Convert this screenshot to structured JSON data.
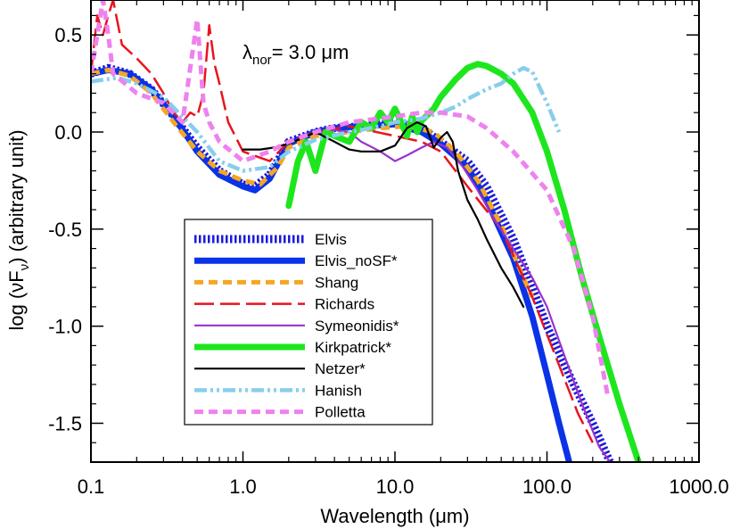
{
  "chart_data": {
    "type": "line",
    "title": "",
    "annotation": {
      "lambda_symbol": "λ",
      "lambda_sub": "nor",
      "text": "=  3.0 μm"
    },
    "xlabel": "Wavelength (μm)",
    "ylabel": "log (νF",
    "ylabel_sub": "ν",
    "ylabel_tail": ") (arbitrary unit)",
    "xscale": "log",
    "xlim": [
      0.1,
      1000
    ],
    "ylim": [
      -1.7,
      0.68
    ],
    "xticks": [
      {
        "value": 0.1,
        "label": "0.1"
      },
      {
        "value": 1,
        "label": "1.0"
      },
      {
        "value": 10,
        "label": "10.0"
      },
      {
        "value": 100,
        "label": "100.0"
      },
      {
        "value": 1000,
        "label": "1000.0"
      }
    ],
    "yticks": [
      {
        "value": 0.5,
        "label": "0.5"
      },
      {
        "value": 0.0,
        "label": "0.0"
      },
      {
        "value": -0.5,
        "label": "-0.5"
      },
      {
        "value": -1.0,
        "label": "-1.0"
      },
      {
        "value": -1.5,
        "label": "-1.5"
      }
    ],
    "legend_position": "center-left",
    "series": [
      {
        "name": "Elvis",
        "color": "#1a1adc",
        "style": "dotted-thick",
        "x": [
          0.1,
          0.13,
          0.18,
          0.25,
          0.35,
          0.5,
          0.7,
          1.0,
          1.2,
          1.5,
          2.0,
          3.0,
          4.0,
          6.0,
          10,
          15,
          20,
          30,
          40,
          60,
          80,
          100,
          150,
          200,
          260
        ],
        "y": [
          0.3,
          0.33,
          0.3,
          0.22,
          0.08,
          -0.08,
          -0.2,
          -0.27,
          -0.28,
          -0.22,
          -0.05,
          0.0,
          0.02,
          0.03,
          0.05,
          0.02,
          -0.05,
          -0.15,
          -0.28,
          -0.55,
          -0.8,
          -1.0,
          -1.3,
          -1.5,
          -1.7
        ]
      },
      {
        "name": "Elvis_noSF*",
        "color": "#0a32e6",
        "style": "solid-thick",
        "x": [
          0.1,
          0.13,
          0.18,
          0.25,
          0.35,
          0.5,
          0.7,
          1.0,
          1.2,
          1.5,
          2.0,
          3.0,
          4.0,
          6.0,
          10,
          15,
          20,
          30,
          40,
          60,
          80,
          100,
          120,
          140
        ],
        "y": [
          0.3,
          0.32,
          0.3,
          0.22,
          0.08,
          -0.1,
          -0.22,
          -0.28,
          -0.3,
          -0.24,
          -0.06,
          0.0,
          0.02,
          0.03,
          0.04,
          0.0,
          -0.06,
          -0.18,
          -0.35,
          -0.65,
          -0.95,
          -1.25,
          -1.5,
          -1.7
        ]
      },
      {
        "name": "Shang",
        "color": "#f5a623",
        "style": "dashed-thick",
        "x": [
          0.1,
          0.13,
          0.18,
          0.25,
          0.35,
          0.5,
          0.7,
          1.0,
          1.3,
          1.7,
          2.0,
          3.0,
          5.0,
          8.0,
          12,
          18,
          25,
          35,
          50,
          70,
          80
        ],
        "y": [
          0.3,
          0.32,
          0.29,
          0.2,
          0.05,
          -0.1,
          -0.2,
          -0.25,
          -0.27,
          -0.18,
          -0.08,
          -0.02,
          0.0,
          0.02,
          0.03,
          0.0,
          -0.1,
          -0.25,
          -0.48,
          -0.75,
          -0.85
        ]
      },
      {
        "name": "Richards",
        "color": "#e8141e",
        "style": "long-dash",
        "x": [
          0.1,
          0.11,
          0.12,
          0.13,
          0.14,
          0.16,
          0.2,
          0.25,
          0.3,
          0.35,
          0.4,
          0.45,
          0.5,
          0.55,
          0.6,
          0.65,
          0.7,
          0.8,
          1.0,
          1.5,
          2.0,
          3.0,
          5.0,
          10,
          15,
          20,
          30,
          50,
          80,
          120,
          160,
          200
        ],
        "y": [
          0.3,
          0.6,
          0.5,
          0.6,
          0.68,
          0.45,
          0.38,
          0.3,
          0.2,
          0.1,
          0.05,
          0.1,
          0.08,
          0.2,
          0.55,
          0.35,
          0.25,
          0.05,
          -0.1,
          -0.15,
          -0.05,
          0.0,
          0.03,
          -0.02,
          -0.05,
          -0.1,
          -0.28,
          -0.5,
          -0.85,
          -1.2,
          -1.45,
          -1.6
        ]
      },
      {
        "name": "Symeonidis*",
        "color": "#9a32cd",
        "style": "solid",
        "x": [
          3.0,
          4.0,
          5.0,
          6.0,
          8.0,
          10,
          12,
          15,
          18,
          22,
          28,
          35,
          45,
          60,
          80,
          100,
          130,
          170,
          220,
          260
        ],
        "y": [
          -0.01,
          0.01,
          0.0,
          -0.05,
          -0.1,
          -0.15,
          -0.12,
          -0.08,
          -0.05,
          -0.08,
          -0.18,
          -0.3,
          -0.45,
          -0.6,
          -0.75,
          -0.9,
          -1.15,
          -1.4,
          -1.62,
          -1.7
        ]
      },
      {
        "name": "Kirkpatrick*",
        "color": "#1ee61e",
        "style": "solid-thick",
        "x": [
          2.0,
          2.3,
          2.6,
          3.0,
          3.5,
          4.0,
          5.0,
          6.0,
          7.0,
          8.0,
          9.0,
          10,
          11,
          12,
          13,
          14,
          15,
          16,
          18,
          20,
          25,
          30,
          35,
          40,
          50,
          60,
          80,
          100,
          130,
          170,
          220,
          300,
          400
        ],
        "y": [
          -0.38,
          -0.15,
          -0.05,
          -0.2,
          0.0,
          -0.02,
          -0.05,
          0.05,
          0.02,
          0.1,
          0.05,
          0.12,
          0.05,
          -0.02,
          0.08,
          0.0,
          0.06,
          0.08,
          0.12,
          0.18,
          0.27,
          0.33,
          0.35,
          0.34,
          0.3,
          0.25,
          0.1,
          -0.1,
          -0.4,
          -0.75,
          -1.05,
          -1.4,
          -1.7
        ]
      },
      {
        "name": "Netzer*",
        "color": "#000000",
        "style": "solid",
        "x": [
          1.0,
          1.3,
          1.6,
          2.0,
          2.5,
          3.0,
          4.0,
          5.0,
          6.0,
          8.0,
          10,
          12,
          14,
          16,
          18,
          20,
          22,
          24,
          26,
          30,
          35,
          40,
          50,
          60,
          70
        ],
        "y": [
          -0.09,
          -0.09,
          -0.08,
          -0.06,
          -0.03,
          0.0,
          -0.05,
          -0.09,
          -0.1,
          -0.1,
          -0.07,
          0.02,
          0.05,
          0.03,
          -0.08,
          -0.03,
          0.0,
          -0.05,
          -0.2,
          -0.35,
          -0.45,
          -0.55,
          -0.7,
          -0.8,
          -0.9
        ]
      },
      {
        "name": "Hanish",
        "color": "#87ceeb",
        "style": "dash-dot",
        "x": [
          0.1,
          0.15,
          0.2,
          0.3,
          0.5,
          0.7,
          1.0,
          1.5,
          2.0,
          3.0,
          5.0,
          8.0,
          10,
          15,
          20,
          25,
          30,
          40,
          50,
          60,
          70,
          80,
          100,
          120
        ],
        "y": [
          0.26,
          0.28,
          0.25,
          0.18,
          0.0,
          -0.15,
          -0.2,
          -0.18,
          -0.1,
          -0.04,
          0.0,
          0.03,
          0.05,
          0.07,
          0.1,
          0.13,
          0.17,
          0.22,
          0.25,
          0.3,
          0.33,
          0.31,
          0.15,
          0.0
        ]
      },
      {
        "name": "Polletta",
        "color": "#ee82ee",
        "style": "dashed-thick",
        "x": [
          0.1,
          0.12,
          0.13,
          0.14,
          0.2,
          0.3,
          0.4,
          0.5,
          0.55,
          0.6,
          0.7,
          1.0,
          1.5,
          2.0,
          3.0,
          5.0,
          10,
          15,
          20,
          30,
          40,
          60,
          100,
          150,
          200,
          250
        ],
        "y": [
          0.3,
          0.68,
          0.5,
          0.3,
          0.2,
          0.15,
          0.05,
          0.58,
          0.15,
          0.05,
          -0.05,
          -0.15,
          -0.1,
          -0.05,
          0.0,
          0.05,
          0.08,
          0.1,
          0.1,
          0.08,
          0.02,
          -0.1,
          -0.3,
          -0.6,
          -0.95,
          -1.35
        ]
      }
    ]
  }
}
